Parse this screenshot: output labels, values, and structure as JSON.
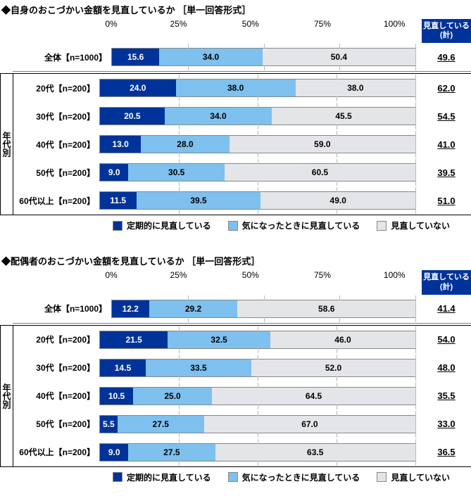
{
  "colors": {
    "seg1": "#003399",
    "seg2": "#7ec0ee",
    "seg3": "#e3e5e8",
    "header_bg": "#003399",
    "header_fg": "#ffffff"
  },
  "axis": {
    "ticks": [
      "0%",
      "25%",
      "50%",
      "75%",
      "100%"
    ]
  },
  "totals_header": "見直している(計)",
  "legend": [
    "定期的に見直している",
    "気になったときに見直している",
    "見直していない"
  ],
  "age_group_label": "年代別",
  "charts": [
    {
      "title": "◆自身のおこづかい金額を見直しているか ［単一回答形式］",
      "overall": {
        "label": "全体【n=1000】",
        "values": [
          15.6,
          34.0,
          50.4
        ],
        "total": "49.6"
      },
      "rows": [
        {
          "label": "20代【n=200】",
          "values": [
            24.0,
            38.0,
            38.0
          ],
          "total": "62.0"
        },
        {
          "label": "30代【n=200】",
          "values": [
            20.5,
            34.0,
            45.5
          ],
          "total": "54.5"
        },
        {
          "label": "40代【n=200】",
          "values": [
            13.0,
            28.0,
            59.0
          ],
          "total": "41.0"
        },
        {
          "label": "50代【n=200】",
          "values": [
            9.0,
            30.5,
            60.5
          ],
          "total": "39.5"
        },
        {
          "label": "60代以上【n=200】",
          "values": [
            11.5,
            39.5,
            49.0
          ],
          "total": "51.0"
        }
      ]
    },
    {
      "title": "◆配偶者のおこづかい金額を見直しているか ［単一回答形式］",
      "overall": {
        "label": "全体【n=1000】",
        "values": [
          12.2,
          29.2,
          58.6
        ],
        "total": "41.4"
      },
      "rows": [
        {
          "label": "20代【n=200】",
          "values": [
            21.5,
            32.5,
            46.0
          ],
          "total": "54.0"
        },
        {
          "label": "30代【n=200】",
          "values": [
            14.5,
            33.5,
            52.0
          ],
          "total": "48.0"
        },
        {
          "label": "40代【n=200】",
          "values": [
            10.5,
            25.0,
            64.5
          ],
          "total": "35.5"
        },
        {
          "label": "50代【n=200】",
          "values": [
            5.5,
            27.5,
            67.0
          ],
          "total": "33.0"
        },
        {
          "label": "60代以上【n=200】",
          "values": [
            9.0,
            27.5,
            63.5
          ],
          "total": "36.5"
        }
      ]
    }
  ]
}
